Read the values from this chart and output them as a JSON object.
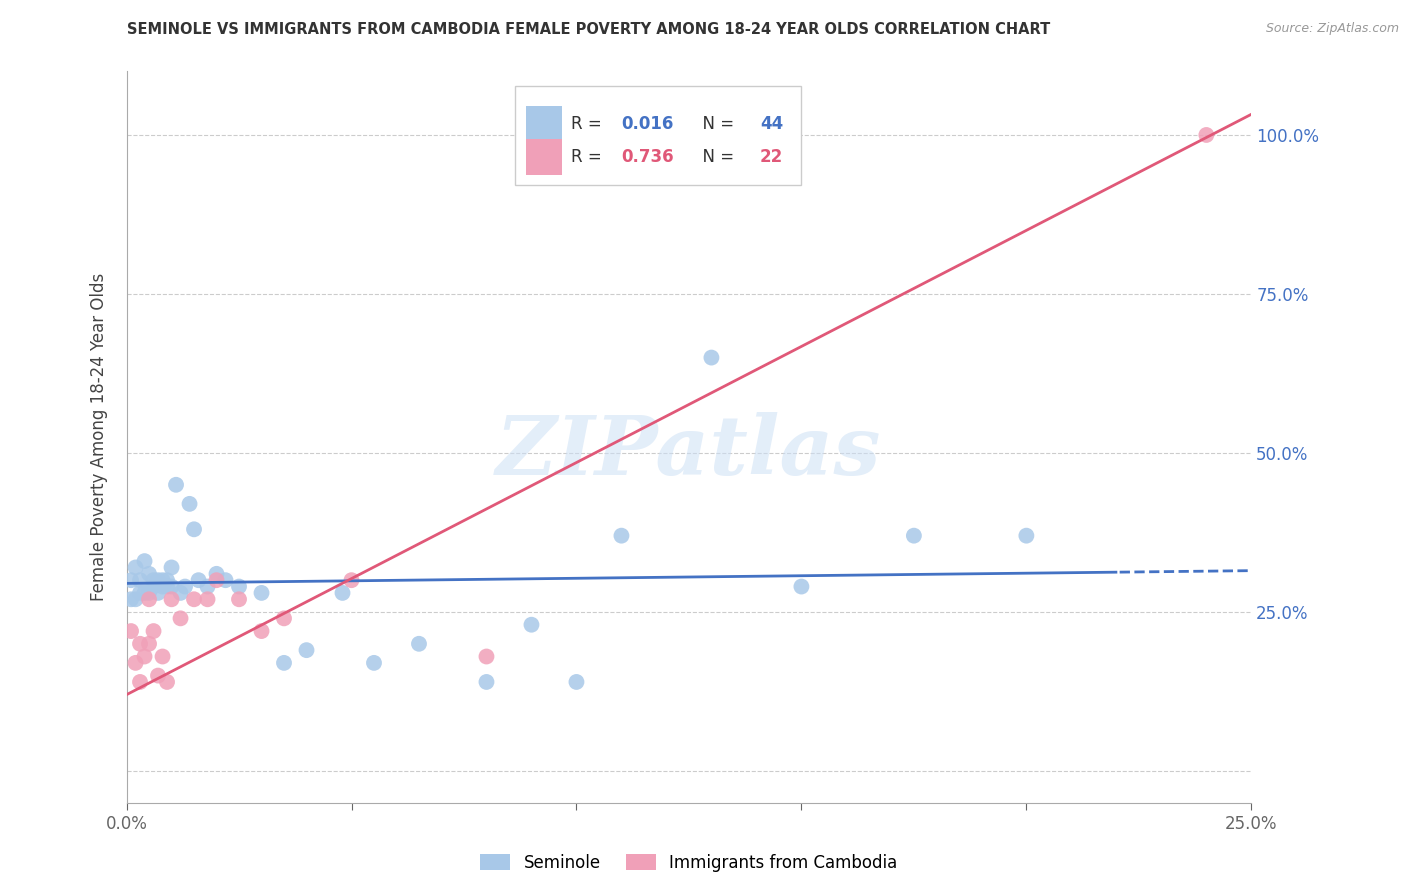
{
  "title": "SEMINOLE VS IMMIGRANTS FROM CAMBODIA FEMALE POVERTY AMONG 18-24 YEAR OLDS CORRELATION CHART",
  "source": "Source: ZipAtlas.com",
  "ylabel": "Female Poverty Among 18-24 Year Olds",
  "xlim": [
    0.0,
    0.25
  ],
  "ylim": [
    -0.05,
    1.1
  ],
  "yticks": [
    0.0,
    0.25,
    0.5,
    0.75,
    1.0
  ],
  "ytick_labels": [
    "",
    "25.0%",
    "50.0%",
    "75.0%",
    "100.0%"
  ],
  "xticks": [
    0.0,
    0.05,
    0.1,
    0.15,
    0.2,
    0.25
  ],
  "xtick_labels": [
    "0.0%",
    "",
    "",
    "",
    "",
    "25.0%"
  ],
  "blue_color": "#a8c8e8",
  "pink_color": "#f0a0b8",
  "blue_line_color": "#4472c4",
  "pink_line_color": "#e05878",
  "right_axis_color": "#4472c4",
  "R_blue": 0.016,
  "N_blue": 44,
  "R_pink": 0.736,
  "N_pink": 22,
  "seminole_x": [
    0.001,
    0.001,
    0.002,
    0.002,
    0.003,
    0.003,
    0.004,
    0.004,
    0.005,
    0.005,
    0.006,
    0.006,
    0.007,
    0.007,
    0.008,
    0.008,
    0.009,
    0.009,
    0.01,
    0.01,
    0.011,
    0.012,
    0.013,
    0.014,
    0.015,
    0.016,
    0.018,
    0.02,
    0.022,
    0.025,
    0.03,
    0.035,
    0.04,
    0.048,
    0.055,
    0.065,
    0.08,
    0.09,
    0.1,
    0.11,
    0.13,
    0.15,
    0.175,
    0.2
  ],
  "seminole_y": [
    0.3,
    0.27,
    0.32,
    0.27,
    0.3,
    0.28,
    0.33,
    0.28,
    0.31,
    0.28,
    0.3,
    0.29,
    0.3,
    0.28,
    0.3,
    0.29,
    0.3,
    0.29,
    0.32,
    0.29,
    0.45,
    0.28,
    0.29,
    0.42,
    0.38,
    0.3,
    0.29,
    0.31,
    0.3,
    0.29,
    0.28,
    0.17,
    0.19,
    0.28,
    0.17,
    0.2,
    0.14,
    0.23,
    0.14,
    0.37,
    0.65,
    0.29,
    0.37,
    0.37
  ],
  "cambodia_x": [
    0.001,
    0.002,
    0.003,
    0.003,
    0.004,
    0.005,
    0.005,
    0.006,
    0.007,
    0.008,
    0.009,
    0.01,
    0.012,
    0.015,
    0.018,
    0.02,
    0.025,
    0.03,
    0.035,
    0.05,
    0.08,
    0.24
  ],
  "cambodia_y": [
    0.22,
    0.17,
    0.2,
    0.14,
    0.18,
    0.27,
    0.2,
    0.22,
    0.15,
    0.18,
    0.14,
    0.27,
    0.24,
    0.27,
    0.27,
    0.3,
    0.27,
    0.22,
    0.24,
    0.3,
    0.18,
    1.0
  ],
  "watermark": "ZIPatlas",
  "background_color": "#ffffff",
  "blue_regression_intercept": 0.295,
  "blue_regression_slope": 0.08,
  "pink_regression_intercept": 0.12,
  "pink_regression_slope": 3.65
}
